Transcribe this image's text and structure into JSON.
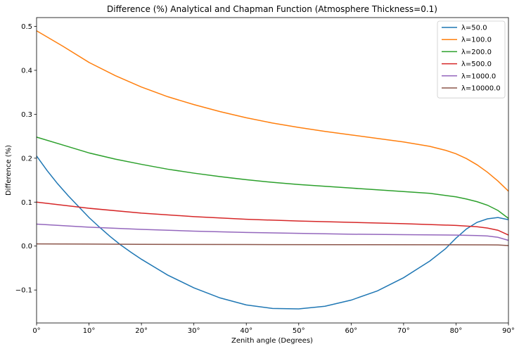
{
  "chart_data": {
    "type": "line",
    "title": "Difference (%)  Analytical and Chapman Function (Atmosphere Thickness=0.1)",
    "xlabel": "Zenith angle (Degrees)",
    "ylabel": "Difference (%)",
    "xlim": [
      0,
      90
    ],
    "ylim": [
      -0.175,
      0.52
    ],
    "x_ticks": [
      0,
      10,
      20,
      30,
      40,
      50,
      60,
      70,
      80,
      90
    ],
    "x_tick_labels": [
      "0°",
      "10°",
      "20°",
      "30°",
      "40°",
      "50°",
      "60°",
      "70°",
      "80°",
      "90°"
    ],
    "y_ticks": [
      -0.1,
      0.0,
      0.1,
      0.2,
      0.3,
      0.4,
      0.5
    ],
    "y_tick_labels": [
      "−0.1",
      "0.0",
      "0.1",
      "0.2",
      "0.3",
      "0.4",
      "0.5"
    ],
    "grid": false,
    "legend_position": "top-right",
    "series": [
      {
        "name": "λ=50.0",
        "color": "#1f77b4",
        "x": [
          0,
          2,
          4,
          6,
          8,
          10,
          12,
          14,
          16,
          18,
          20,
          25,
          30,
          35,
          40,
          45,
          50,
          55,
          60,
          65,
          70,
          75,
          78,
          80,
          82,
          84,
          86,
          88,
          90
        ],
        "y": [
          0.205,
          0.172,
          0.142,
          0.115,
          0.09,
          0.065,
          0.043,
          0.022,
          0.003,
          -0.014,
          -0.03,
          -0.066,
          -0.095,
          -0.118,
          -0.134,
          -0.142,
          -0.143,
          -0.137,
          -0.123,
          -0.102,
          -0.072,
          -0.034,
          -0.006,
          0.018,
          0.039,
          0.054,
          0.062,
          0.065,
          0.06
        ]
      },
      {
        "name": "λ=100.0",
        "color": "#ff7f0e",
        "x": [
          0,
          5,
          10,
          15,
          20,
          25,
          30,
          35,
          40,
          45,
          50,
          55,
          60,
          65,
          70,
          75,
          78,
          80,
          82,
          84,
          86,
          88,
          90
        ],
        "y": [
          0.49,
          0.455,
          0.418,
          0.388,
          0.362,
          0.34,
          0.322,
          0.306,
          0.292,
          0.28,
          0.27,
          0.261,
          0.253,
          0.245,
          0.237,
          0.227,
          0.218,
          0.21,
          0.199,
          0.185,
          0.168,
          0.148,
          0.125
        ]
      },
      {
        "name": "λ=200.0",
        "color": "#2ca02c",
        "x": [
          0,
          5,
          10,
          15,
          20,
          25,
          30,
          35,
          40,
          45,
          50,
          55,
          60,
          65,
          70,
          75,
          80,
          82,
          84,
          86,
          88,
          90
        ],
        "y": [
          0.248,
          0.23,
          0.212,
          0.198,
          0.186,
          0.175,
          0.166,
          0.158,
          0.151,
          0.145,
          0.14,
          0.136,
          0.132,
          0.128,
          0.124,
          0.12,
          0.112,
          0.107,
          0.101,
          0.093,
          0.081,
          0.063
        ]
      },
      {
        "name": "λ=500.0",
        "color": "#d62728",
        "x": [
          0,
          10,
          20,
          30,
          40,
          50,
          60,
          70,
          80,
          84,
          86,
          88,
          90
        ],
        "y": [
          0.1,
          0.086,
          0.075,
          0.067,
          0.061,
          0.057,
          0.054,
          0.051,
          0.047,
          0.044,
          0.041,
          0.036,
          0.025
        ]
      },
      {
        "name": "λ=1000.0",
        "color": "#9467bd",
        "x": [
          0,
          10,
          20,
          30,
          40,
          50,
          60,
          70,
          80,
          84,
          86,
          88,
          90
        ],
        "y": [
          0.05,
          0.043,
          0.038,
          0.034,
          0.031,
          0.029,
          0.027,
          0.026,
          0.025,
          0.024,
          0.023,
          0.02,
          0.013
        ]
      },
      {
        "name": "λ=10000.0",
        "color": "#8c564b",
        "x": [
          0,
          20,
          40,
          60,
          80,
          86,
          88,
          90
        ],
        "y": [
          0.005,
          0.004,
          0.0035,
          0.0032,
          0.003,
          0.0028,
          0.0025,
          0.0012
        ]
      }
    ]
  }
}
